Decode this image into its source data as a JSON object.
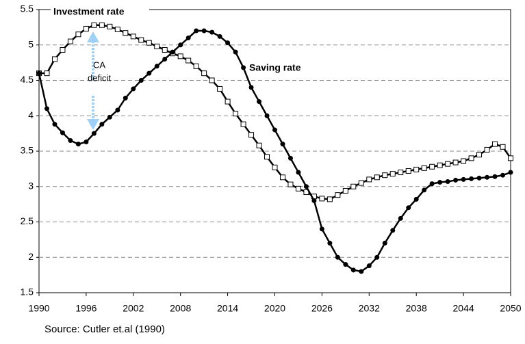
{
  "chart_data": {
    "type": "line",
    "x": [
      1990,
      1991,
      1992,
      1993,
      1994,
      1995,
      1996,
      1997,
      1998,
      1999,
      2000,
      2001,
      2002,
      2003,
      2004,
      2005,
      2006,
      2007,
      2008,
      2009,
      2010,
      2011,
      2012,
      2013,
      2014,
      2015,
      2016,
      2017,
      2018,
      2019,
      2020,
      2021,
      2022,
      2023,
      2024,
      2025,
      2026,
      2027,
      2028,
      2029,
      2030,
      2031,
      2032,
      2033,
      2034,
      2035,
      2036,
      2037,
      2038,
      2039,
      2040,
      2041,
      2042,
      2043,
      2044,
      2045,
      2046,
      2047,
      2048,
      2049,
      2050
    ],
    "series": [
      {
        "name": "Investment rate",
        "color": "#000000",
        "marker": "square",
        "values": [
          4.6,
          4.6,
          4.8,
          4.93,
          5.05,
          5.15,
          5.23,
          5.28,
          5.28,
          5.26,
          5.22,
          5.17,
          5.12,
          5.07,
          5.03,
          4.98,
          4.93,
          4.88,
          4.84,
          4.78,
          4.7,
          4.6,
          4.5,
          4.38,
          4.2,
          4.03,
          3.88,
          3.73,
          3.58,
          3.42,
          3.27,
          3.13,
          3.03,
          2.97,
          2.92,
          2.86,
          2.83,
          2.82,
          2.88,
          2.94,
          3.0,
          3.05,
          3.1,
          3.13,
          3.16,
          3.18,
          3.2,
          3.22,
          3.24,
          3.26,
          3.28,
          3.3,
          3.32,
          3.34,
          3.36,
          3.4,
          3.45,
          3.52,
          3.6,
          3.56,
          3.4
        ]
      },
      {
        "name": "Saving rate",
        "color": "#000000",
        "marker": "circle",
        "values": [
          4.6,
          4.1,
          3.88,
          3.76,
          3.65,
          3.6,
          3.63,
          3.75,
          3.88,
          3.98,
          4.08,
          4.25,
          4.38,
          4.5,
          4.6,
          4.7,
          4.8,
          4.9,
          5.0,
          5.1,
          5.2,
          5.2,
          5.18,
          5.12,
          5.03,
          4.9,
          4.68,
          4.4,
          4.2,
          4.0,
          3.8,
          3.6,
          3.4,
          3.2,
          3.0,
          2.8,
          2.4,
          2.2,
          2.0,
          1.9,
          1.82,
          1.8,
          1.88,
          2.0,
          2.2,
          2.38,
          2.55,
          2.7,
          2.82,
          2.95,
          3.04,
          3.06,
          3.07,
          3.09,
          3.1,
          3.11,
          3.12,
          3.13,
          3.14,
          3.16,
          3.2
        ]
      }
    ],
    "annotations": [
      "CA",
      "deficit"
    ],
    "source": "Source: Cutler et.al (1990)",
    "xlim": [
      1990,
      2050
    ],
    "xticks": [
      1990,
      1996,
      2002,
      2008,
      2014,
      2020,
      2026,
      2032,
      2038,
      2044,
      2050
    ],
    "ylim": [
      1.5,
      5.5
    ],
    "yticks": [
      1.5,
      2,
      2.5,
      3,
      3.5,
      4,
      4.5,
      5,
      5.5
    ],
    "grid": true
  }
}
